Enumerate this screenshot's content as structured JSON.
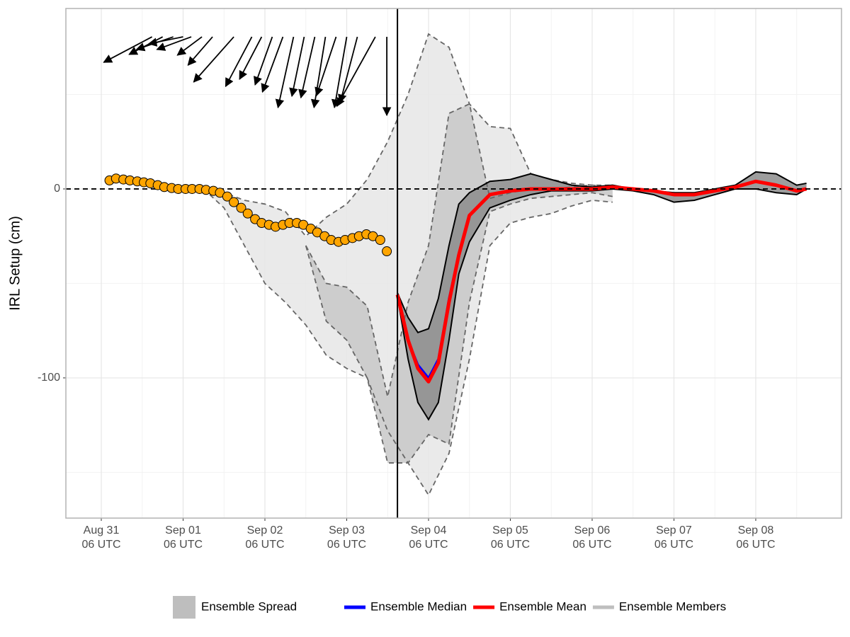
{
  "chart_data": {
    "type": "line",
    "y_label": "IRL Setup (cm)",
    "xlim": [
      -0.433,
      9.048
    ],
    "ylim": [
      -174.2,
      95.5
    ],
    "xticks": [
      {
        "value": 0,
        "label": "Aug 31\n06 UTC"
      },
      {
        "value": 1,
        "label": "Sep 01\n06 UTC"
      },
      {
        "value": 2,
        "label": "Sep 02\n06 UTC"
      },
      {
        "value": 3,
        "label": "Sep 03\n06 UTC"
      },
      {
        "value": 4,
        "label": "Sep 04\n06 UTC"
      },
      {
        "value": 5,
        "label": "Sep 05\n06 UTC"
      },
      {
        "value": 6,
        "label": "Sep 06\n06 UTC"
      },
      {
        "value": 7,
        "label": "Sep 07\n06 UTC"
      },
      {
        "value": 8,
        "label": "Sep 08\n06 UTC"
      }
    ],
    "xminor": [
      0.5,
      1.5,
      2.5,
      3.5,
      4.5,
      5.5,
      6.5,
      7.5,
      8.5
    ],
    "yticks": [
      0,
      -100
    ],
    "yminor": [
      50,
      -50,
      -150
    ],
    "grid": true,
    "reference_line": 0,
    "forecast_start": 3.62,
    "observations": {
      "color": "#ffa500",
      "x": [
        0.1,
        0.18,
        0.27,
        0.35,
        0.44,
        0.52,
        0.6,
        0.69,
        0.77,
        0.86,
        0.94,
        1.03,
        1.11,
        1.2,
        1.28,
        1.37,
        1.45,
        1.54,
        1.62,
        1.71,
        1.79,
        1.88,
        1.96,
        2.05,
        2.13,
        2.22,
        2.3,
        2.39,
        2.47,
        2.56,
        2.64,
        2.73,
        2.81,
        2.9,
        2.98,
        3.07,
        3.15,
        3.24,
        3.32,
        3.41,
        3.49
      ],
      "values": [
        4.5,
        5.5,
        5,
        4.5,
        4,
        3.5,
        3,
        2,
        1,
        0.5,
        0,
        0,
        0,
        0,
        -0.5,
        -1,
        -2,
        -4,
        -7,
        -10,
        -13,
        -16,
        -18,
        -19,
        -20,
        -19,
        -18,
        -18,
        -19,
        -21,
        -23,
        -25,
        -27,
        -28,
        -27,
        -26,
        -25,
        -24,
        -25,
        -27,
        -33
      ]
    },
    "spread": {
      "name": "Ensemble Spread",
      "color": "#bebebe",
      "bands": [
        {
          "color": "#e6e6e6",
          "x": [
            1.25,
            1.5,
            1.75,
            2.0,
            2.25,
            2.5,
            2.75,
            3.0,
            3.25,
            3.5,
            3.75,
            4.0,
            4.25,
            4.5,
            4.75,
            5.0,
            5.25,
            5.5,
            5.75,
            6.0,
            6.25
          ],
          "upper": [
            0,
            -2,
            -6,
            -8,
            -12,
            -25,
            -15,
            -8,
            5,
            25,
            50,
            82,
            75,
            45,
            33,
            32,
            8,
            5,
            3,
            2,
            2
          ],
          "lower": [
            0,
            -10,
            -30,
            -50,
            -60,
            -72,
            -88,
            -95,
            -100,
            -128,
            -145,
            -162,
            -140,
            -90,
            -30,
            -18,
            -15,
            -13,
            -9,
            -6,
            -7
          ]
        },
        {
          "color": "#c8c8c8",
          "x": [
            2.5,
            2.75,
            3.0,
            3.25,
            3.5,
            3.75,
            4.0,
            4.25,
            4.5,
            4.75,
            5.0,
            5.25,
            5.5,
            5.75,
            6.0,
            6.25
          ],
          "upper": [
            -30,
            -50,
            -52,
            -62,
            -110,
            -60,
            -30,
            40,
            45,
            -5,
            -2,
            0,
            0,
            1,
            2,
            1
          ],
          "lower": [
            -30,
            -70,
            -80,
            -100,
            -145,
            -145,
            -130,
            -135,
            -60,
            -12,
            -8,
            -5,
            -4,
            -3,
            -2,
            -4
          ]
        }
      ]
    },
    "series": [
      {
        "name": "Ensemble Median",
        "color": "#0000ff",
        "x": [
          3.62,
          3.75,
          3.87,
          4.0,
          4.12,
          4.25,
          4.37,
          4.5,
          4.75,
          5.0,
          5.25,
          5.5,
          5.75,
          6.0,
          6.25,
          6.5,
          6.75,
          7.0,
          7.25,
          7.5,
          7.75,
          8.0,
          8.25,
          8.5,
          8.62
        ],
        "values": [
          -56,
          -80,
          -93,
          -100,
          -90,
          -58,
          -34,
          -14,
          -3,
          -1,
          0,
          0,
          0,
          0,
          1,
          0,
          -1,
          -3,
          -3,
          -1,
          1,
          4,
          2,
          -1,
          0
        ]
      },
      {
        "name": "Ensemble Mean",
        "color": "#ff0000",
        "x": [
          3.62,
          3.75,
          3.87,
          4.0,
          4.12,
          4.25,
          4.37,
          4.5,
          4.75,
          5.0,
          5.25,
          5.5,
          5.75,
          6.0,
          6.25,
          6.5,
          6.75,
          7.0,
          7.25,
          7.5,
          7.75,
          8.0,
          8.25,
          8.5,
          8.62
        ],
        "values": [
          -56,
          -80,
          -95,
          -102,
          -92,
          -60,
          -35,
          -14,
          -3,
          -1,
          0,
          0,
          0,
          0,
          1,
          0,
          -1,
          -3,
          -3,
          -1,
          1,
          4,
          2,
          -1,
          0
        ]
      },
      {
        "name": "Ensemble Members",
        "color": "#bebebe",
        "x": [
          3.62,
          3.75,
          3.87,
          4.0,
          4.12,
          4.25,
          4.37,
          4.5,
          4.75,
          5.0,
          5.25,
          5.5,
          5.75,
          6.0,
          6.25,
          6.5,
          6.75,
          7.0,
          7.25,
          7.5,
          7.75,
          8.0,
          8.25,
          8.5,
          8.62
        ],
        "upper": [
          -55,
          -68,
          -76,
          -74,
          -58,
          -30,
          -8,
          -2,
          4,
          5,
          8,
          5,
          2,
          1,
          2,
          0,
          -1,
          -2,
          -2,
          0,
          2,
          9,
          8,
          2,
          3
        ],
        "lower": [
          -57,
          -90,
          -113,
          -122,
          -113,
          -80,
          -45,
          -28,
          -10,
          -6,
          -3,
          -1,
          -1,
          -1,
          0,
          -1,
          -3,
          -7,
          -6,
          -3,
          0,
          0,
          -2,
          -3,
          0
        ]
      }
    ],
    "wind": {
      "y": 80.5,
      "x": [
        0.62,
        0.75,
        0.88,
        1.0,
        1.1,
        1.23,
        1.36,
        1.62,
        1.84,
        1.96,
        2.09,
        2.22,
        2.35,
        2.48,
        2.61,
        2.74,
        2.87,
        3.0,
        3.13,
        3.35,
        3.49
      ],
      "x_end": [
        0.03,
        0.34,
        0.43,
        0.58,
        0.68,
        0.93,
        1.06,
        1.13,
        1.52,
        1.69,
        1.88,
        1.97,
        2.16,
        2.33,
        2.44,
        2.6,
        2.63,
        2.85,
        2.92,
        2.88,
        3.49
      ],
      "y_end": [
        67.0,
        71.2,
        73.8,
        76.8,
        73.8,
        70.8,
        65.5,
        56.6,
        54.3,
        58.1,
        55.1,
        51.3,
        43.1,
        49.1,
        48.3,
        43.1,
        49.4,
        43.1,
        45.7,
        43.8,
        39.0
      ]
    }
  }
}
